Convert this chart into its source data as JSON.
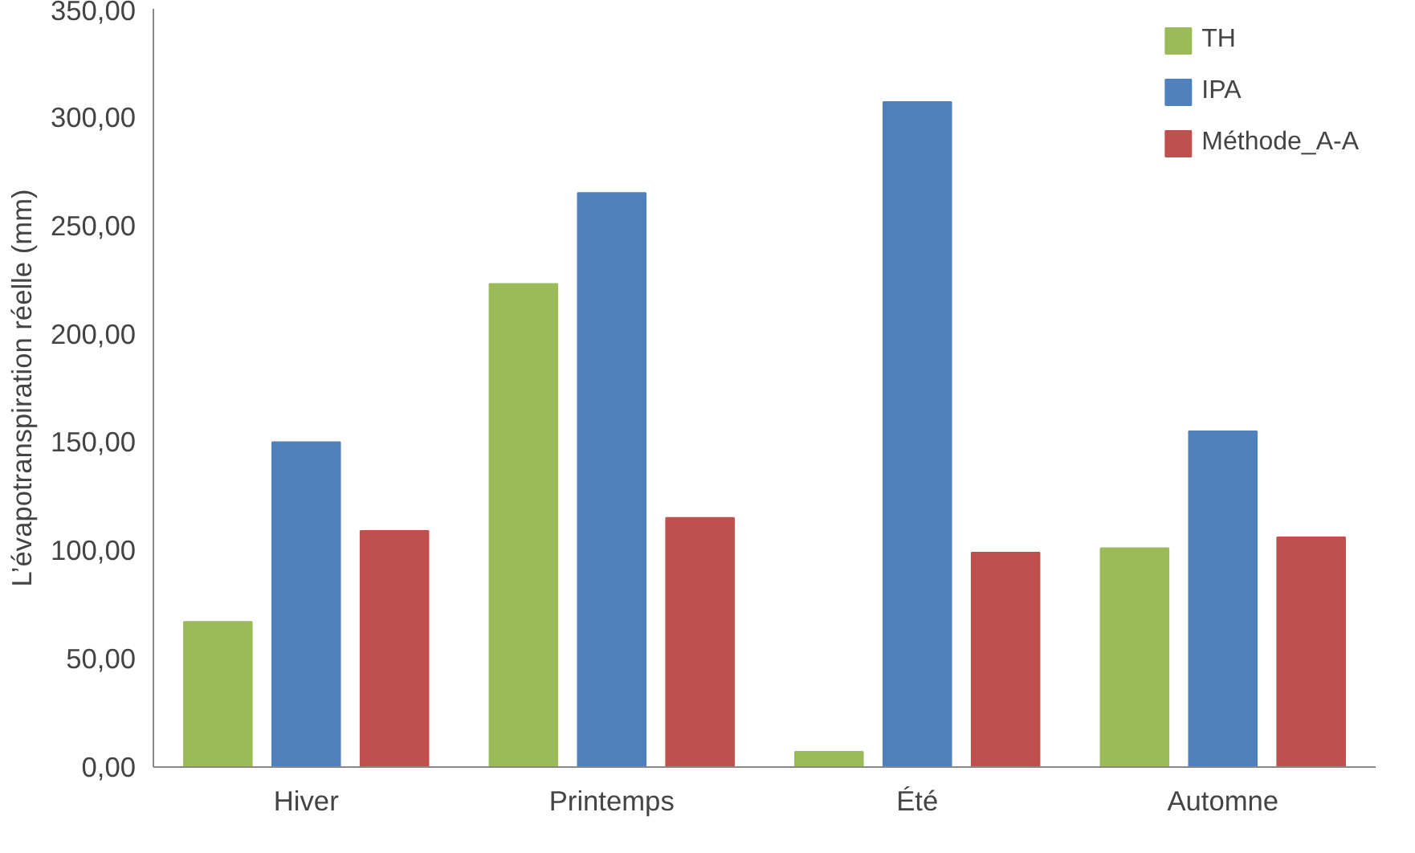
{
  "chart_data": {
    "type": "bar",
    "ylabel": "L’évapotranspiration réelle (mm)",
    "categories": [
      "Hiver",
      "Printemps",
      "Été",
      "Automne"
    ],
    "series": [
      {
        "name": "TH",
        "color": "#9bbb59",
        "values": [
          67,
          223,
          7,
          101
        ]
      },
      {
        "name": "IPA",
        "color": "#4f81bd",
        "values": [
          150,
          265,
          307,
          155
        ]
      },
      {
        "name": "Méthode_A-A",
        "color": "#c0504d",
        "values": [
          109,
          115,
          99,
          106
        ]
      }
    ],
    "ylim": [
      0,
      350
    ],
    "yticks": [
      {
        "value": 0,
        "label": "0,00"
      },
      {
        "value": 50,
        "label": "50,00"
      },
      {
        "value": 100,
        "label": "100,00"
      },
      {
        "value": 150,
        "label": "150,00"
      },
      {
        "value": 200,
        "label": "200,00"
      },
      {
        "value": 250,
        "label": "250,00"
      },
      {
        "value": 300,
        "label": "300,00"
      },
      {
        "value": 350,
        "label": "350,00"
      }
    ],
    "grid": false,
    "legend": "top right"
  }
}
